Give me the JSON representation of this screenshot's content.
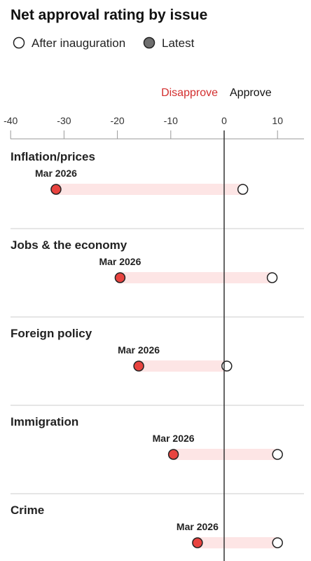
{
  "chart_data": {
    "type": "dumbbell",
    "title": "Net approval rating by issue",
    "legend": [
      {
        "label": "After inauguration",
        "fill": "#ffffff",
        "stroke": "#222222"
      },
      {
        "label": "Latest",
        "fill": "#6e6e6e",
        "stroke": "#222222"
      }
    ],
    "direction_labels": {
      "left": "Disapprove",
      "right": "Approve",
      "left_color": "#d32f2f",
      "right_color": "#111111"
    },
    "xlim": [
      -40,
      15
    ],
    "xticks": [
      -40,
      -30,
      -20,
      -10,
      0,
      10
    ],
    "grid": true,
    "latest_label": "Mar 2026",
    "colors": {
      "latest_fill": "#e8433f",
      "range_fill": "#fde5e5",
      "zero_line": "#333333",
      "divider": "#cccccc"
    },
    "categories": [
      "Inflation/prices",
      "Jobs & the economy",
      "Foreign policy",
      "Immigration",
      "Crime"
    ],
    "series": [
      {
        "name": "After inauguration",
        "values": [
          3.5,
          9,
          0.5,
          10,
          10
        ]
      },
      {
        "name": "Latest",
        "values": [
          -31.5,
          -19.5,
          -16,
          -9.5,
          -5
        ]
      }
    ]
  }
}
